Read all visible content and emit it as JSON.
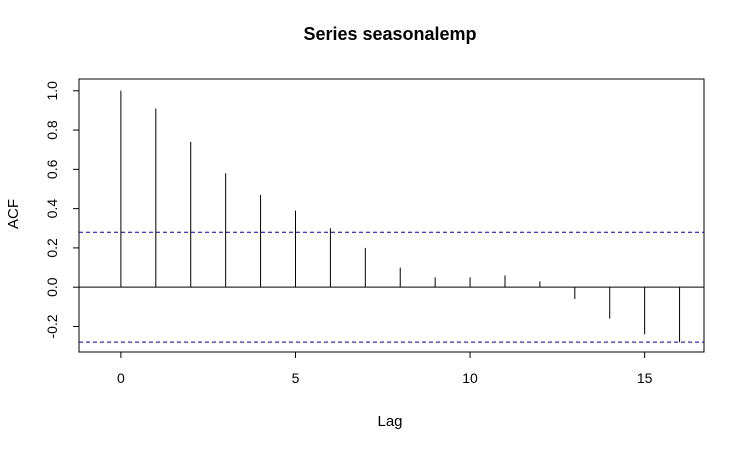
{
  "chart_data": {
    "type": "bar",
    "title": "Series  seasonalemp",
    "xlabel": "Lag",
    "ylabel": "ACF",
    "x": [
      0,
      1,
      2,
      3,
      4,
      5,
      6,
      7,
      8,
      9,
      10,
      11,
      12,
      13,
      14,
      15,
      16
    ],
    "values": [
      1.0,
      0.91,
      0.74,
      0.58,
      0.47,
      0.39,
      0.3,
      0.2,
      0.1,
      0.05,
      0.05,
      0.06,
      0.03,
      -0.06,
      -0.16,
      -0.24,
      -0.28
    ],
    "confidence_bound": 0.28,
    "xlim": [
      -1.2,
      16.7
    ],
    "ylim": [
      -0.33,
      1.06
    ],
    "xticks": [
      0,
      5,
      10,
      15
    ],
    "xtick_labels": [
      "0",
      "5",
      "10",
      "15"
    ],
    "yticks": [
      -0.2,
      0.0,
      0.2,
      0.4,
      0.6,
      0.8,
      1.0
    ],
    "ytick_labels": [
      "-0.2",
      "0.0",
      "0.2",
      "0.4",
      "0.6",
      "0.8",
      "1.0"
    ],
    "grid": false,
    "zero_line": true,
    "colors": {
      "bars": "#000000",
      "confidence": "#00008b",
      "axes": "#000000"
    }
  }
}
